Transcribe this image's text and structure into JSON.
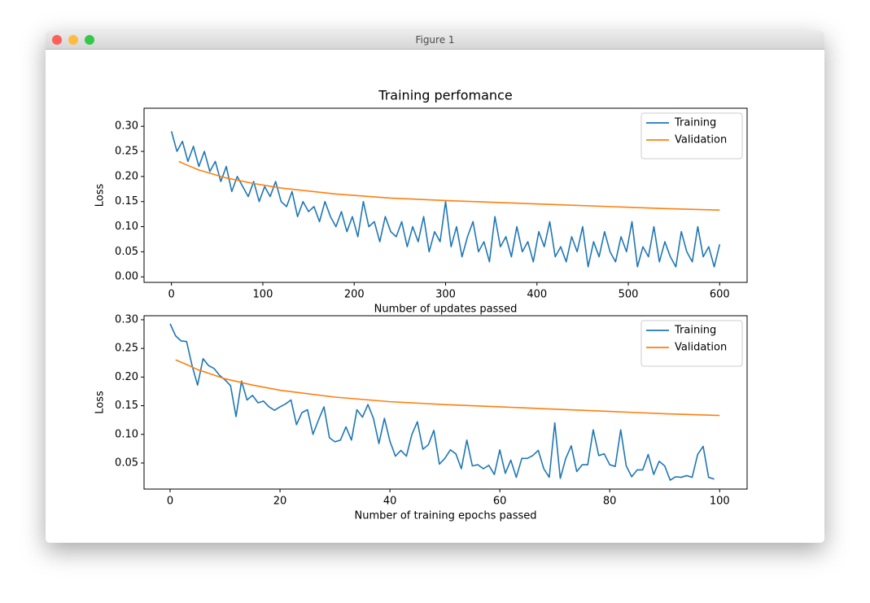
{
  "window": {
    "title": "Figure 1"
  },
  "chart_data": [
    {
      "type": "line",
      "title": "Training perfomance",
      "xlabel": "Number of updates passed",
      "ylabel": "Loss",
      "xlim": [
        -30,
        630
      ],
      "ylim": [
        -0.011,
        0.336
      ],
      "xticks": [
        0,
        100,
        200,
        300,
        400,
        500,
        600
      ],
      "yticks": [
        {
          "value": 0,
          "label": "0.00"
        },
        0.05,
        {
          "value": 0.1,
          "label": "0.10"
        },
        0.15,
        {
          "value": 0.2,
          "label": "0.20"
        },
        0.25,
        {
          "value": 0.3,
          "label": "0.30"
        }
      ],
      "legend": "upper right",
      "series": [
        {
          "name": "Training",
          "color": "#1f77b4",
          "x": [
            0,
            6,
            12,
            18,
            24,
            30,
            36,
            42,
            48,
            54,
            60,
            66,
            72,
            78,
            84,
            90,
            96,
            102,
            108,
            114,
            120,
            126,
            132,
            138,
            144,
            150,
            156,
            162,
            168,
            174,
            180,
            186,
            192,
            198,
            204,
            210,
            216,
            222,
            228,
            234,
            240,
            246,
            252,
            258,
            264,
            270,
            276,
            282,
            288,
            294,
            300,
            306,
            312,
            318,
            324,
            330,
            336,
            342,
            348,
            354,
            360,
            366,
            372,
            378,
            384,
            390,
            396,
            402,
            408,
            414,
            420,
            426,
            432,
            438,
            444,
            450,
            456,
            462,
            468,
            474,
            480,
            486,
            492,
            498,
            504,
            510,
            516,
            522,
            528,
            534,
            540,
            546,
            552,
            558,
            564,
            570,
            576,
            582,
            588,
            594,
            600
          ],
          "values": [
            0.29,
            0.25,
            0.27,
            0.23,
            0.26,
            0.22,
            0.25,
            0.21,
            0.23,
            0.19,
            0.22,
            0.17,
            0.2,
            0.18,
            0.16,
            0.19,
            0.15,
            0.18,
            0.16,
            0.19,
            0.15,
            0.14,
            0.17,
            0.12,
            0.15,
            0.13,
            0.14,
            0.11,
            0.15,
            0.12,
            0.1,
            0.13,
            0.09,
            0.12,
            0.08,
            0.15,
            0.1,
            0.11,
            0.07,
            0.12,
            0.09,
            0.08,
            0.11,
            0.06,
            0.1,
            0.07,
            0.12,
            0.05,
            0.09,
            0.07,
            0.15,
            0.06,
            0.1,
            0.04,
            0.08,
            0.11,
            0.05,
            0.07,
            0.03,
            0.12,
            0.06,
            0.08,
            0.04,
            0.1,
            0.05,
            0.07,
            0.03,
            0.09,
            0.06,
            0.11,
            0.04,
            0.06,
            0.03,
            0.08,
            0.05,
            0.1,
            0.02,
            0.07,
            0.04,
            0.09,
            0.05,
            0.03,
            0.08,
            0.05,
            0.11,
            0.02,
            0.06,
            0.04,
            0.1,
            0.03,
            0.07,
            0.04,
            0.02,
            0.09,
            0.05,
            0.03,
            0.1,
            0.04,
            0.06,
            0.02,
            0.065
          ]
        },
        {
          "name": "Validation",
          "color": "#ff7f0e",
          "x": [
            8,
            18,
            30,
            60,
            90,
            120,
            180,
            240,
            300,
            360,
            420,
            480,
            540,
            600
          ],
          "values": [
            0.23,
            0.222,
            0.213,
            0.197,
            0.186,
            0.177,
            0.165,
            0.157,
            0.152,
            0.148,
            0.144,
            0.14,
            0.136,
            0.133
          ]
        }
      ]
    },
    {
      "type": "line",
      "xlabel": "Number of training epochs passed",
      "ylabel": "Loss",
      "xlim": [
        -4.74,
        105
      ],
      "ylim": [
        0.0045,
        0.307
      ],
      "xticks": [
        0,
        20,
        40,
        60,
        80,
        100
      ],
      "yticks": [
        0.05,
        {
          "value": 0.1,
          "label": "0.10"
        },
        0.15,
        {
          "value": 0.2,
          "label": "0.20"
        },
        0.25,
        {
          "value": 0.3,
          "label": "0.30"
        }
      ],
      "legend": "upper right",
      "series": [
        {
          "name": "Training",
          "color": "#1f77b4",
          "x": [
            0,
            1,
            2,
            3,
            4,
            5,
            6,
            7,
            8,
            9,
            10,
            11,
            12,
            13,
            14,
            15,
            16,
            17,
            18,
            19,
            20,
            21,
            22,
            23,
            24,
            25,
            26,
            27,
            28,
            29,
            30,
            31,
            32,
            33,
            34,
            35,
            36,
            37,
            38,
            39,
            40,
            41,
            42,
            43,
            44,
            45,
            46,
            47,
            48,
            49,
            50,
            51,
            52,
            53,
            54,
            55,
            56,
            57,
            58,
            59,
            60,
            61,
            62,
            63,
            64,
            65,
            66,
            67,
            68,
            69,
            70,
            71,
            72,
            73,
            74,
            75,
            76,
            77,
            78,
            79,
            80,
            81,
            82,
            83,
            84,
            85,
            86,
            87,
            88,
            89,
            90,
            91,
            92,
            93,
            94,
            95,
            96,
            97,
            98,
            99
          ],
          "values": [
            0.293,
            0.272,
            0.263,
            0.262,
            0.22,
            0.186,
            0.232,
            0.22,
            0.215,
            0.203,
            0.195,
            0.185,
            0.131,
            0.193,
            0.16,
            0.168,
            0.155,
            0.158,
            0.148,
            0.142,
            0.148,
            0.153,
            0.16,
            0.117,
            0.138,
            0.143,
            0.1,
            0.125,
            0.148,
            0.094,
            0.087,
            0.09,
            0.113,
            0.09,
            0.143,
            0.13,
            0.152,
            0.128,
            0.084,
            0.128,
            0.088,
            0.062,
            0.072,
            0.062,
            0.1,
            0.122,
            0.074,
            0.082,
            0.107,
            0.048,
            0.058,
            0.073,
            0.066,
            0.04,
            0.09,
            0.045,
            0.047,
            0.04,
            0.046,
            0.03,
            0.073,
            0.032,
            0.055,
            0.025,
            0.058,
            0.058,
            0.063,
            0.072,
            0.04,
            0.025,
            0.12,
            0.023,
            0.058,
            0.08,
            0.035,
            0.047,
            0.047,
            0.108,
            0.063,
            0.066,
            0.047,
            0.044,
            0.108,
            0.045,
            0.026,
            0.038,
            0.038,
            0.065,
            0.03,
            0.053,
            0.045,
            0.02,
            0.026,
            0.025,
            0.028,
            0.025,
            0.065,
            0.079,
            0.025,
            0.022
          ]
        },
        {
          "name": "Validation",
          "color": "#ff7f0e",
          "x": [
            1,
            3,
            5,
            10,
            15,
            20,
            30,
            40,
            50,
            60,
            70,
            80,
            90,
            100
          ],
          "values": [
            0.23,
            0.222,
            0.213,
            0.197,
            0.186,
            0.177,
            0.165,
            0.157,
            0.152,
            0.148,
            0.144,
            0.14,
            0.136,
            0.133
          ]
        }
      ]
    }
  ]
}
